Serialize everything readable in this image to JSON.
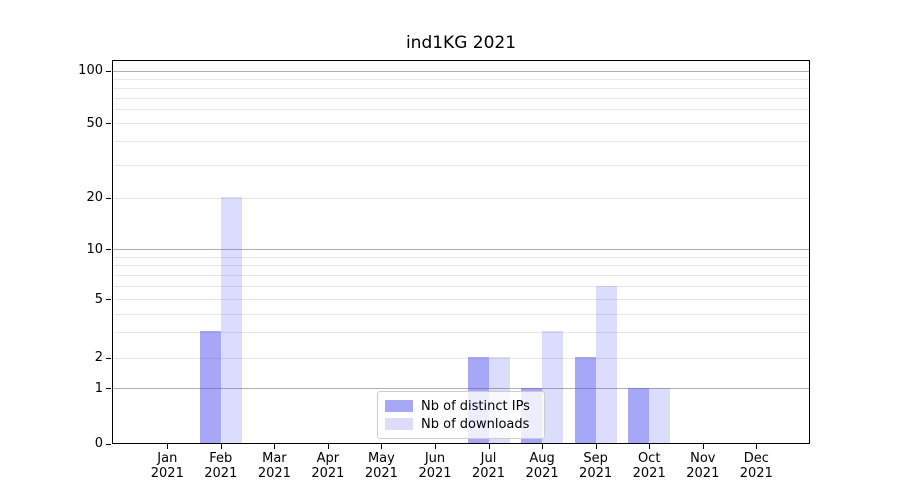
{
  "title": "ind1KG 2021",
  "chart_data": {
    "type": "bar",
    "title": "ind1KG 2021",
    "x_axis": {
      "months": [
        "Jan",
        "Feb",
        "Mar",
        "Apr",
        "May",
        "Jun",
        "Jul",
        "Aug",
        "Sep",
        "Oct",
        "Nov",
        "Dec"
      ],
      "year": "2021",
      "categories": [
        "Jan 2021",
        "Feb 2021",
        "Mar 2021",
        "Apr 2021",
        "May 2021",
        "Jun 2021",
        "Jul 2021",
        "Aug 2021",
        "Sep 2021",
        "Oct 2021",
        "Nov 2021",
        "Dec 2021"
      ]
    },
    "y_axis": {
      "scale": "log-like with 0 baseline",
      "ticks": [
        0,
        1,
        2,
        5,
        10,
        20,
        50,
        100
      ],
      "ylim": [
        0,
        115
      ],
      "grid": "horizontal major and minor gridlines"
    },
    "series": [
      {
        "name": "Nb of distinct IPs",
        "color": "rgba(80,80,240,0.5)",
        "values": [
          0,
          3,
          0,
          0,
          0,
          0,
          2,
          1,
          2,
          1,
          0,
          0
        ]
      },
      {
        "name": "Nb of downloads",
        "color": "rgba(80,80,240,0.2)",
        "values": [
          0,
          20,
          0,
          0,
          0,
          0,
          2,
          3,
          6,
          1,
          0,
          0
        ]
      }
    ],
    "legend": {
      "position": "bottom-center"
    }
  },
  "colors": {
    "bar_dark": "rgba(80,80,240,0.5)",
    "bar_light": "rgba(80,80,240,0.2)",
    "major_grid": "#b0b0b0",
    "minor_grid": "#e7e7e7",
    "spine": "#000000",
    "text": "#000000",
    "legend_border": "#cccccc",
    "legend_bg": "rgba(255,255,255,0.8)"
  }
}
